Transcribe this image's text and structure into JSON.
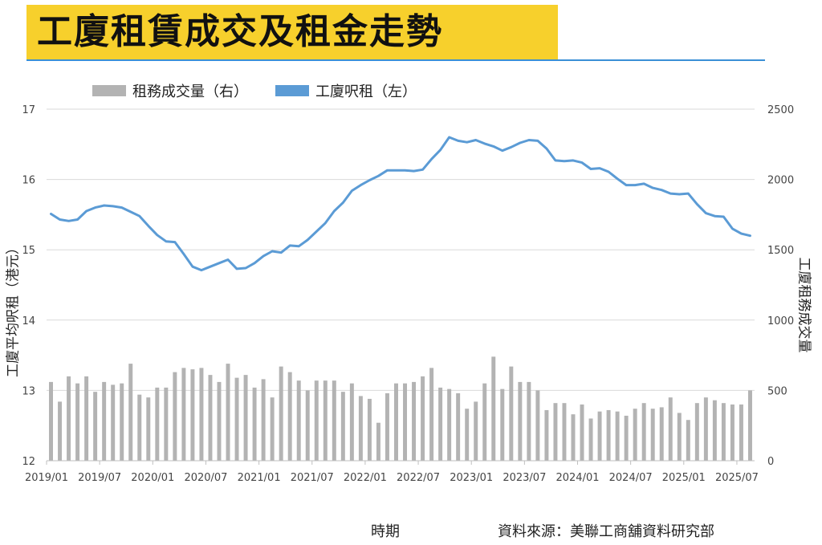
{
  "title": "工廈租賃成交及租金走勢",
  "legend": [
    {
      "label": "租務成交量（右）",
      "color": "#b3b3b3"
    },
    {
      "label": "工廈呎租（左）",
      "color": "#5b9bd5"
    }
  ],
  "ylabel_left": "工廈平均呎租（港元）",
  "ylabel_right": "工廈租務成交量",
  "xlabel": "時期",
  "source": "資料來源：美聯工商舖資料研究部",
  "chart_data": {
    "type": "bar+line",
    "x_tick_labels": [
      "2019/01",
      "2019/07",
      "2020/01",
      "2020/07",
      "2021/01",
      "2021/07",
      "2022/01",
      "2022/07",
      "2023/01",
      "2023/07",
      "2024/01",
      "2024/07",
      "2025/01",
      "2025/07"
    ],
    "y_left": {
      "ticks": [
        12,
        13,
        14,
        15,
        16,
        17
      ],
      "range": [
        12,
        17
      ]
    },
    "y_right": {
      "ticks": [
        0,
        500,
        1000,
        1500,
        2000,
        2500
      ],
      "range": [
        0,
        2500
      ]
    },
    "series": [
      {
        "name": "租務成交量（右）",
        "axis": "right",
        "type": "bar",
        "color": "#b3b3b3",
        "values": [
          560,
          420,
          600,
          550,
          600,
          490,
          560,
          540,
          550,
          690,
          470,
          450,
          520,
          520,
          630,
          660,
          650,
          660,
          610,
          560,
          690,
          590,
          610,
          520,
          580,
          450,
          670,
          630,
          570,
          500,
          570,
          570,
          570,
          490,
          550,
          460,
          440,
          270,
          480,
          550,
          550,
          560,
          600,
          660,
          520,
          510,
          480,
          370,
          420,
          550,
          740,
          510,
          670,
          560,
          560,
          500,
          360,
          410,
          410,
          330,
          400,
          300,
          350,
          360,
          350,
          320,
          370,
          410,
          370,
          380,
          450,
          340,
          290,
          410,
          450,
          430,
          410,
          400,
          400,
          500
        ]
      },
      {
        "name": "工廈呎租（左）",
        "axis": "left",
        "type": "line",
        "color": "#5b9bd5",
        "values": [
          15.51,
          15.43,
          15.41,
          15.43,
          15.55,
          15.6,
          15.63,
          15.62,
          15.6,
          15.54,
          15.48,
          15.34,
          15.21,
          15.12,
          15.11,
          14.94,
          14.76,
          14.71,
          14.76,
          14.81,
          14.86,
          14.73,
          14.74,
          14.81,
          14.91,
          14.98,
          14.96,
          15.06,
          15.05,
          15.14,
          15.26,
          15.38,
          15.55,
          15.67,
          15.84,
          15.92,
          15.99,
          16.05,
          16.13,
          16.13,
          16.13,
          16.12,
          16.14,
          16.29,
          16.42,
          16.6,
          16.55,
          16.53,
          16.56,
          16.51,
          16.47,
          16.41,
          16.46,
          16.52,
          16.56,
          16.55,
          16.44,
          16.27,
          16.26,
          16.27,
          16.24,
          16.15,
          16.16,
          16.11,
          16.01,
          15.92,
          15.92,
          15.94,
          15.88,
          15.85,
          15.8,
          15.79,
          15.8,
          15.65,
          15.52,
          15.48,
          15.47,
          15.3,
          15.23,
          15.2
        ]
      }
    ]
  }
}
